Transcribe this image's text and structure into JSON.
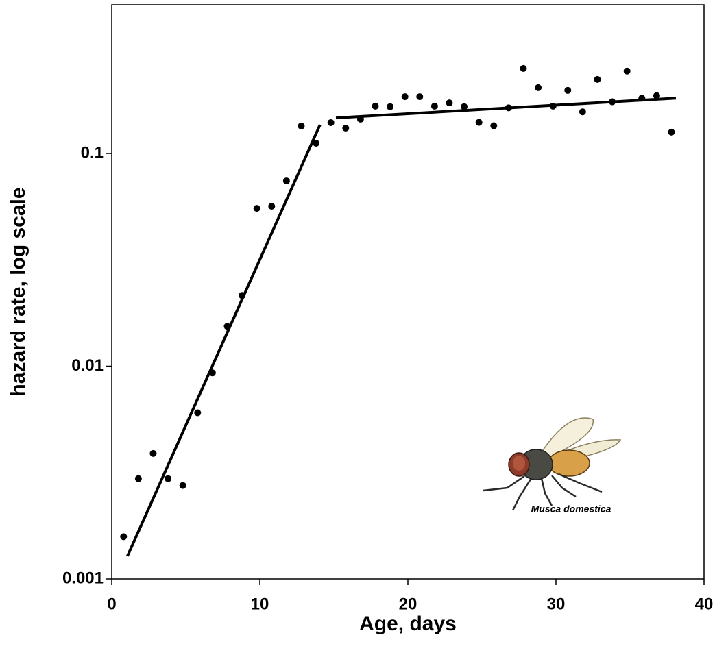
{
  "chart_data": {
    "type": "scatter",
    "x_label": "Age, days",
    "y_label": "hazard rate, log scale",
    "annotation": "Musca domestica",
    "xlim": [
      0,
      40
    ],
    "xticks": [
      0,
      10,
      20,
      30,
      40
    ],
    "ylim": [
      0.001,
      0.5
    ],
    "yticks": [
      0.001,
      0.01,
      0.1
    ],
    "y_log_scale": true,
    "series": [
      {
        "color": "#000000",
        "x": [
          0.8,
          1.8,
          2.8,
          3.8,
          4.8,
          5.8,
          6.8,
          7.8,
          8.8,
          9.8,
          10.8,
          11.8,
          12.8,
          13.8,
          14.8,
          15.8,
          16.8,
          17.8,
          18.8,
          19.8,
          20.8,
          21.8,
          22.8,
          23.8,
          24.8,
          25.8,
          26.8,
          27.8,
          28.8,
          29.8,
          30.8,
          31.8,
          32.8,
          33.8,
          34.8,
          35.8,
          36.8,
          37.8
        ],
        "values": [
          0.00158,
          0.00296,
          0.00389,
          0.00296,
          0.00275,
          0.00604,
          0.0093,
          0.0154,
          0.0215,
          0.0552,
          0.0565,
          0.0743,
          0.1346,
          0.1118,
          0.1397,
          0.1316,
          0.145,
          0.167,
          0.166,
          0.185,
          0.185,
          0.167,
          0.173,
          0.166,
          0.14,
          0.135,
          0.164,
          0.251,
          0.204,
          0.167,
          0.198,
          0.157,
          0.223,
          0.175,
          0.244,
          0.182,
          0.187,
          0.126
        ]
      }
    ],
    "fit_lines": [
      {
        "color": "#000000",
        "x": [
          1.06,
          14.07
        ],
        "values": [
          0.00128,
          0.1366
        ]
      },
      {
        "color": "#000000",
        "x": [
          15.14,
          38.1
        ],
        "values": [
          0.147,
          0.182
        ]
      }
    ]
  }
}
